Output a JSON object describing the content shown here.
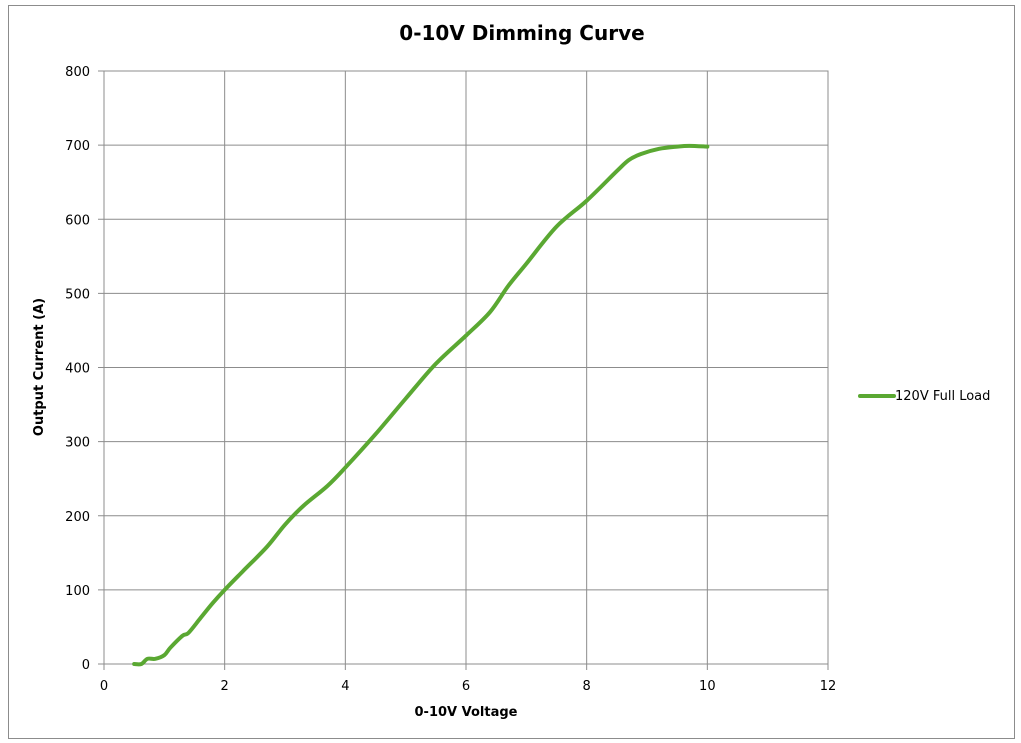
{
  "chart_data": {
    "type": "line",
    "title": "0-10V Dimming Curve",
    "xlabel": "0-10V Voltage",
    "ylabel": "Output Current (A)",
    "xlim": [
      0,
      12
    ],
    "ylim": [
      0,
      800
    ],
    "x_ticks": [
      "0",
      "2",
      "4",
      "6",
      "8",
      "10",
      "12"
    ],
    "y_ticks": [
      "0",
      "100",
      "200",
      "300",
      "400",
      "500",
      "600",
      "700",
      "800"
    ],
    "grid": true,
    "legend_position": "right",
    "series": [
      {
        "name": "120V Full Load",
        "color": "#5aa832",
        "x": [
          0.5,
          0.62,
          0.72,
          0.85,
          1.0,
          1.1,
          1.3,
          1.4,
          1.6,
          1.8,
          2.0,
          2.3,
          2.7,
          3.0,
          3.3,
          3.7,
          4.0,
          4.5,
          5.0,
          5.5,
          6.0,
          6.4,
          6.7,
          7.0,
          7.5,
          8.0,
          8.5,
          8.7,
          8.9,
          9.2,
          9.5,
          9.7,
          10.0
        ],
        "y": [
          0,
          0,
          7,
          7,
          12,
          22,
          38,
          42,
          62,
          82,
          100,
          125,
          158,
          188,
          213,
          240,
          265,
          310,
          358,
          405,
          443,
          475,
          510,
          540,
          590,
          625,
          665,
          680,
          688,
          695,
          698,
          699,
          698
        ]
      }
    ]
  }
}
